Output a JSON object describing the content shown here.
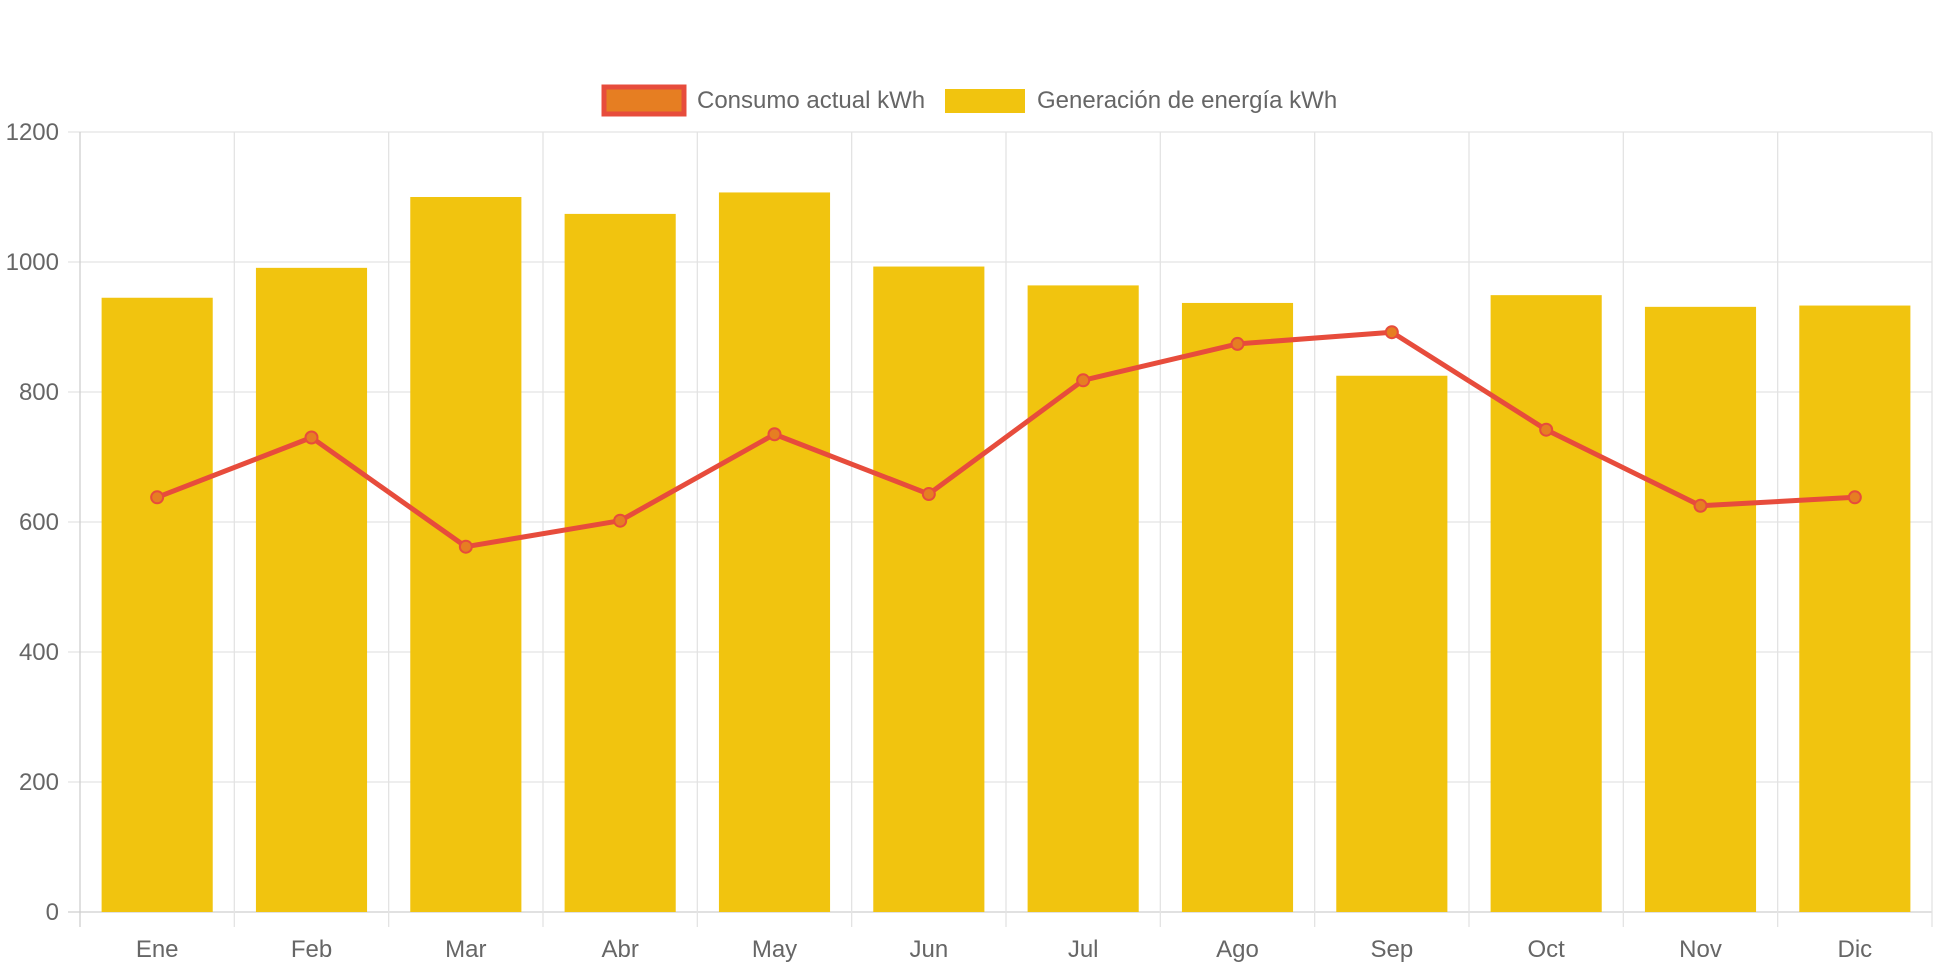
{
  "chart_data": {
    "type": "bar",
    "categories": [
      "Ene",
      "Feb",
      "Mar",
      "Abr",
      "May",
      "Jun",
      "Jul",
      "Ago",
      "Sep",
      "Oct",
      "Nov",
      "Dic"
    ],
    "series": [
      {
        "name": "Consumo actual kWh",
        "type": "line",
        "color": "#e74c3c",
        "fill_color": "#e67e22",
        "values": [
          638,
          730,
          562,
          602,
          735,
          643,
          818,
          874,
          892,
          742,
          625,
          638
        ]
      },
      {
        "name": "Generación de energía kWh",
        "type": "bar",
        "color": "#f1c40f",
        "values": [
          945,
          991,
          1100,
          1074,
          1107,
          993,
          964,
          937,
          825,
          949,
          931,
          933
        ]
      }
    ],
    "y_ticks": [
      "0",
      "200",
      "400",
      "600",
      "800",
      "1000",
      "1200"
    ],
    "ylim": [
      0,
      1200
    ],
    "grid": true,
    "legend_position": "top"
  }
}
